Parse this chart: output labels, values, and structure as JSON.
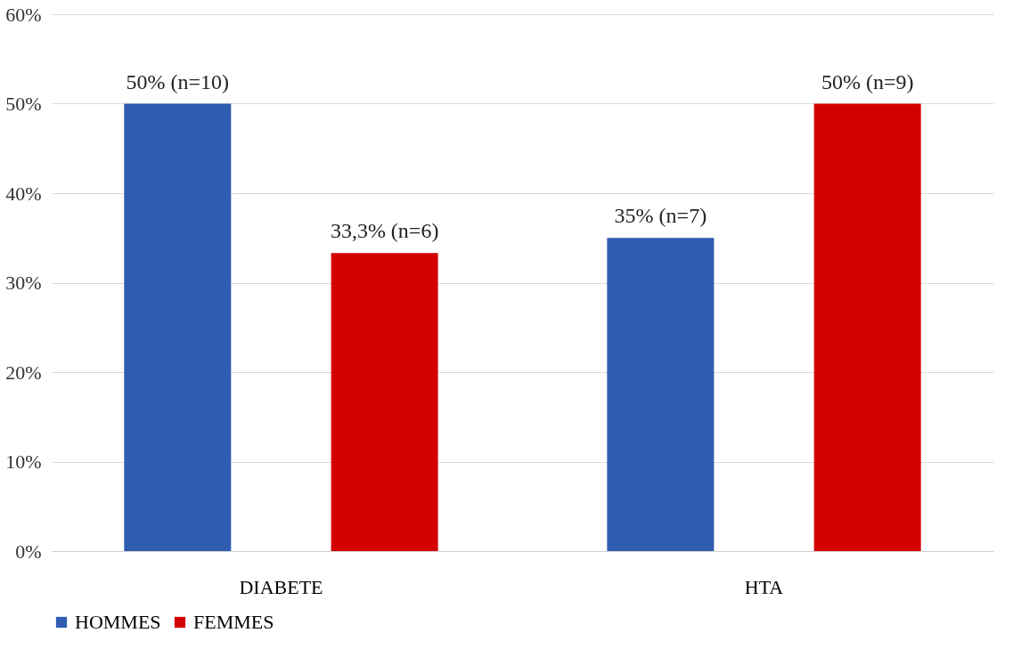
{
  "chart_data": {
    "type": "bar",
    "categories": [
      "DIABETE",
      "HTA"
    ],
    "series": [
      {
        "name": "HOMMES",
        "color": "#2f5caf",
        "values": [
          50,
          35
        ],
        "value_labels": [
          "50% (n=10)",
          "35% (n=7)"
        ]
      },
      {
        "name": "FEMMES",
        "color": "#d40000",
        "values": [
          33.3,
          50
        ],
        "value_labels": [
          "33,3% (n=6)",
          "50% (n=9)"
        ]
      }
    ],
    "ylim": [
      0,
      60
    ],
    "yticks": [
      {
        "value": 0,
        "label": "0%"
      },
      {
        "value": 10,
        "label": "10%"
      },
      {
        "value": 20,
        "label": "20%"
      },
      {
        "value": 30,
        "label": "30%"
      },
      {
        "value": 40,
        "label": "40%"
      },
      {
        "value": 50,
        "label": "50%"
      },
      {
        "value": 60,
        "label": "60%"
      }
    ],
    "grid": "y",
    "legend": "bottom"
  }
}
